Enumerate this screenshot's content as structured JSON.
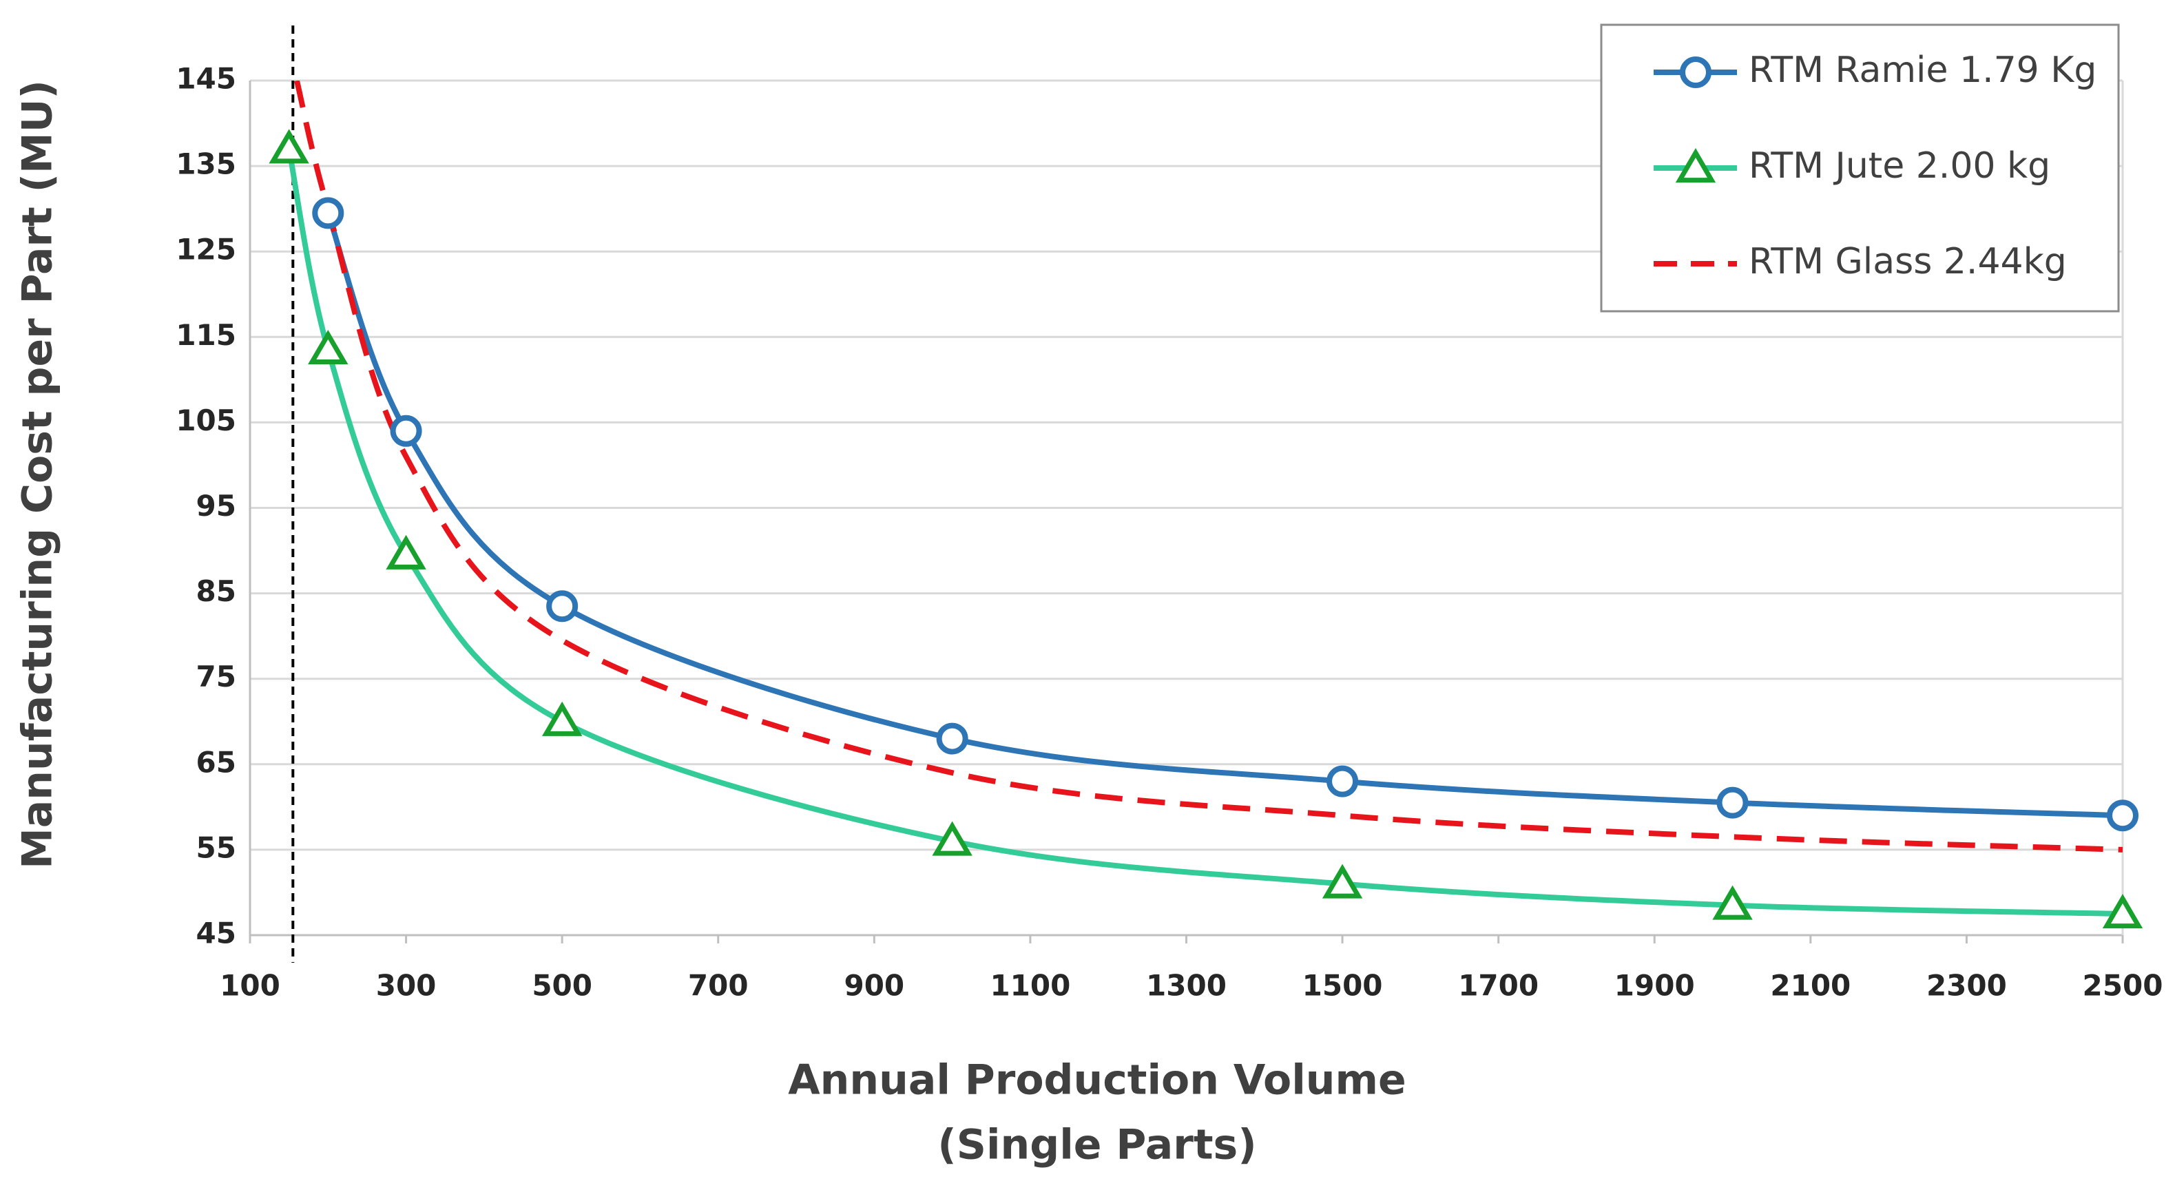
{
  "chart_data": {
    "type": "line",
    "ylabel": "Manufacturing Cost per Part (MU)",
    "xlabel": [
      "Annual Production Volume",
      "(Single Parts)"
    ],
    "xlim": [
      100,
      2500
    ],
    "ylim": [
      45,
      145
    ],
    "xticks": [
      100,
      300,
      500,
      700,
      900,
      1100,
      1300,
      1500,
      1700,
      1900,
      2100,
      2300,
      2500
    ],
    "yticks": [
      45,
      55,
      65,
      75,
      85,
      95,
      105,
      115,
      125,
      135,
      145
    ],
    "grid": true,
    "vline": 155,
    "legend": "top-right",
    "series": [
      {
        "name": "RTM Ramie 1.79 Kg",
        "color": "#2e75b6",
        "marker": "circle",
        "marker_color": "#2e75b6",
        "dash": false,
        "x": [
          200,
          300,
          500,
          1000,
          1500,
          2000,
          2500
        ],
        "values": [
          129.5,
          104,
          83.5,
          68,
          63,
          60.5,
          59
        ]
      },
      {
        "name": "RTM Jute 2.00 kg",
        "color": "#33cc99",
        "marker": "triangle",
        "marker_color": "#17a02b",
        "dash": false,
        "x": [
          150,
          200,
          300,
          500,
          1000,
          1500,
          2000,
          2500
        ],
        "values": [
          137,
          113.5,
          89.5,
          70,
          56,
          51,
          48.5,
          47.5
        ]
      },
      {
        "name": "RTM Glass 2.44kg",
        "color": "#e8141b",
        "marker": "none",
        "marker_color": "#e8141b",
        "dash": true,
        "x": [
          160,
          200,
          300,
          500,
          1000,
          1500,
          2000,
          2500
        ],
        "values": [
          145,
          130,
          101,
          79.5,
          64,
          59,
          56.5,
          55
        ]
      }
    ]
  }
}
